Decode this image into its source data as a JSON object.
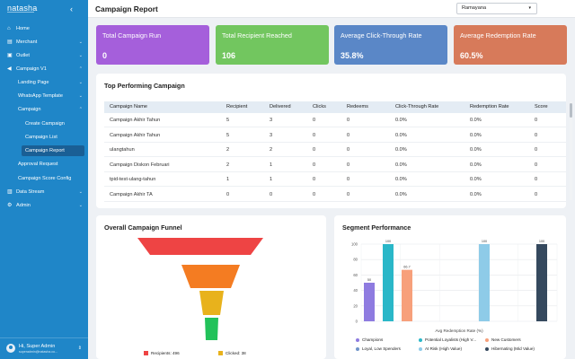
{
  "brand": "natasha",
  "sidebar": {
    "items": [
      {
        "label": "Home",
        "icon": "home-icon"
      },
      {
        "label": "Merchant",
        "icon": "store-icon"
      },
      {
        "label": "Outlet",
        "icon": "outlet-icon"
      },
      {
        "label": "Campaign V1",
        "icon": "megaphone-icon"
      },
      {
        "label": "Landing Page"
      },
      {
        "label": "WhatsApp Template"
      },
      {
        "label": "Campaign"
      },
      {
        "label": "Create Campaign"
      },
      {
        "label": "Campaign List"
      },
      {
        "label": "Campaign Report"
      },
      {
        "label": "Approval Request"
      },
      {
        "label": "Campaign Score Config"
      },
      {
        "label": "Data Stream",
        "icon": "database-icon"
      },
      {
        "label": "Admin",
        "icon": "admin-icon"
      }
    ],
    "user": {
      "name": "Hi, Super Admin",
      "email": "superadmin@natasha.co..."
    }
  },
  "header": {
    "title": "Campaign Report",
    "merchant_select": "Ramayana"
  },
  "cards": [
    {
      "label": "Total Campaign Run",
      "value": "0",
      "color": "#a55fdb"
    },
    {
      "label": "Total Recipient Reached",
      "value": "106",
      "color": "#72c65f"
    },
    {
      "label": "Average Click-Through Rate",
      "value": "35.8%",
      "color": "#5a87c7"
    },
    {
      "label": "Average Redemption Rate",
      "value": "60.5%",
      "color": "#d77a5a"
    }
  ],
  "top_campaign": {
    "title": "Top Performing Campaign",
    "columns": [
      "Campaign Name",
      "Recipient",
      "Delivered",
      "Clicks",
      "Redeems",
      "Click-Through Rate",
      "Redemption Rate",
      "Score"
    ],
    "rows": [
      [
        "Campaign Akhir Tahun",
        "5",
        "3",
        "0",
        "0",
        "0.0%",
        "0.0%",
        "0"
      ],
      [
        "Campaign Akhir Tahun",
        "5",
        "3",
        "0",
        "0",
        "0.0%",
        "0.0%",
        "0"
      ],
      [
        "ulangtahun",
        "2",
        "2",
        "0",
        "0",
        "0.0%",
        "0.0%",
        "0"
      ],
      [
        "Campaign Diskon Februari",
        "2",
        "1",
        "0",
        "0",
        "0.0%",
        "0.0%",
        "0"
      ],
      [
        "tpid-test-ulang-tahun",
        "1",
        "1",
        "0",
        "0",
        "0.0%",
        "0.0%",
        "0"
      ],
      [
        "Campaign Akhir TA",
        "0",
        "0",
        "0",
        "0",
        "0.0%",
        "0.0%",
        "0"
      ]
    ]
  },
  "funnel": {
    "title": "Overall Campaign Funnel",
    "stages": [
      {
        "label": "Recipients: 496",
        "color": "#ee4444"
      },
      {
        "label": "Clicked: 38",
        "color": "#e8b21c"
      }
    ],
    "colors": [
      "#ee4444",
      "#f47c22",
      "#e8b21c",
      "#22c25a"
    ]
  },
  "segment": {
    "title": "Segment Performance",
    "legend": [
      {
        "label": "Champions",
        "color": "#8e7be0"
      },
      {
        "label": "Potential Loyalists (High V...",
        "color": "#2ab7c8"
      },
      {
        "label": "New Customers",
        "color": "#f7a07b"
      },
      {
        "label": "Loyal, Low Spenders",
        "color": "#6f94c9"
      },
      {
        "label": "At Risk (High Value)",
        "color": "#8ecbe8"
      },
      {
        "label": "Hibernating (Mid Value)",
        "color": "#35495e"
      }
    ]
  },
  "chart_data": {
    "type": "bar",
    "categories": [
      "Champions",
      "Potential Loyalists (High V...",
      "New Customers",
      "Loyal, Low Spenders",
      "At Risk (High Value)",
      "Hibernating (Mid Value)"
    ],
    "values": [
      50,
      100,
      66.7,
      0,
      100,
      100
    ],
    "data_labels": [
      "50",
      "100",
      "66.7",
      "",
      "100",
      "100"
    ],
    "colors": [
      "#8e7be0",
      "#2ab7c8",
      "#f7a07b",
      "#6f94c9",
      "#8ecbe8",
      "#35495e"
    ],
    "xlabel": "Avg Redemption Rate (%)",
    "ylim": [
      0,
      100
    ],
    "yticks": [
      "0",
      "20",
      "40",
      "60",
      "80",
      "100"
    ],
    "grid": true,
    "legend": "bottom"
  }
}
